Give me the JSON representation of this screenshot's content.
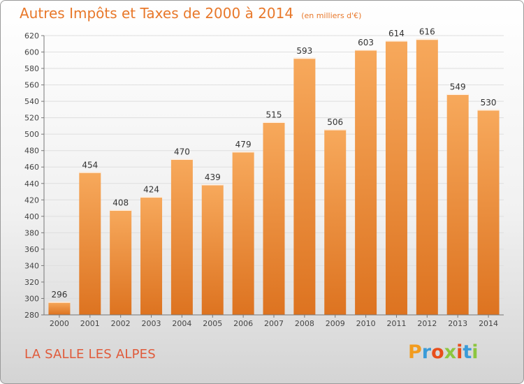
{
  "header": {
    "title": "Autres Impôts et Taxes de 2000 à 2014",
    "subtitle": "(en milliers d'€)"
  },
  "commune": "LA SALLE LES ALPES",
  "logo": {
    "text": "Proxiti",
    "letters": [
      "P",
      "r",
      "o",
      "x",
      "i",
      "t",
      "i"
    ],
    "colors": [
      "#f29c1f",
      "#3a9bd8",
      "#e84e1b",
      "#8cc63f",
      "#e84e1b",
      "#3a9bd8",
      "#8cc63f"
    ]
  },
  "colors": {
    "bar_top": "#f7a95c",
    "bar_bottom": "#dd7320",
    "accent": "#e8782a",
    "commune": "#e05a3a"
  },
  "chart_data": {
    "type": "bar",
    "categories": [
      "2000",
      "2001",
      "2002",
      "2003",
      "2004",
      "2005",
      "2006",
      "2007",
      "2008",
      "2009",
      "2010",
      "2011",
      "2012",
      "2013",
      "2014"
    ],
    "values": [
      296,
      454,
      408,
      424,
      470,
      439,
      479,
      515,
      593,
      506,
      603,
      614,
      616,
      549,
      530
    ],
    "title": "Autres Impôts et Taxes de 2000 à 2014",
    "subtitle": "(en milliers d'€)",
    "xlabel": "",
    "ylabel": "",
    "ylim": [
      280,
      620
    ],
    "yticks": [
      280,
      300,
      320,
      340,
      360,
      380,
      400,
      420,
      440,
      460,
      480,
      500,
      520,
      540,
      560,
      580,
      600,
      620
    ],
    "grid": true,
    "data_labels": true
  }
}
